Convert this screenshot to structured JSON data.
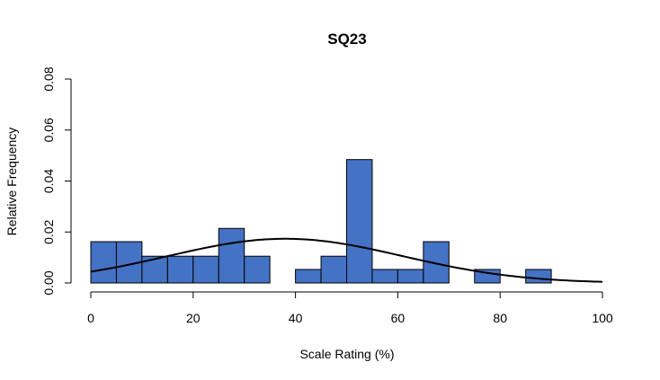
{
  "chart_data": {
    "type": "bar",
    "title": "SQ23",
    "xlabel": "Scale Rating (%)",
    "ylabel": "Relative Frequency",
    "xlim": [
      0,
      100
    ],
    "ylim": [
      0,
      0.08
    ],
    "x_ticks": [
      0,
      20,
      40,
      60,
      80,
      100
    ],
    "y_ticks": [
      "0.00",
      "0.02",
      "0.04",
      "0.06",
      "0.08"
    ],
    "bar_color": "#4472C4",
    "bins": [
      {
        "from": 0,
        "to": 5,
        "value": 0.0162
      },
      {
        "from": 5,
        "to": 10,
        "value": 0.0162
      },
      {
        "from": 10,
        "to": 15,
        "value": 0.0105
      },
      {
        "from": 15,
        "to": 20,
        "value": 0.0105
      },
      {
        "from": 20,
        "to": 25,
        "value": 0.0105
      },
      {
        "from": 25,
        "to": 30,
        "value": 0.0214
      },
      {
        "from": 30,
        "to": 35,
        "value": 0.0105
      },
      {
        "from": 35,
        "to": 40,
        "value": 0
      },
      {
        "from": 40,
        "to": 45,
        "value": 0.0053
      },
      {
        "from": 45,
        "to": 50,
        "value": 0.0105
      },
      {
        "from": 50,
        "to": 55,
        "value": 0.0484
      },
      {
        "from": 55,
        "to": 60,
        "value": 0.0053
      },
      {
        "from": 60,
        "to": 65,
        "value": 0.0053
      },
      {
        "from": 65,
        "to": 70,
        "value": 0.0162
      },
      {
        "from": 70,
        "to": 75,
        "value": 0
      },
      {
        "from": 75,
        "to": 80,
        "value": 0.0053
      },
      {
        "from": 80,
        "to": 85,
        "value": 0
      },
      {
        "from": 85,
        "to": 90,
        "value": 0.0053
      },
      {
        "from": 90,
        "to": 95,
        "value": 0
      },
      {
        "from": 95,
        "to": 100,
        "value": 0
      }
    ],
    "density_curve": {
      "type": "normal",
      "mean": 38,
      "sd": 23,
      "range": [
        0,
        100
      ]
    }
  }
}
